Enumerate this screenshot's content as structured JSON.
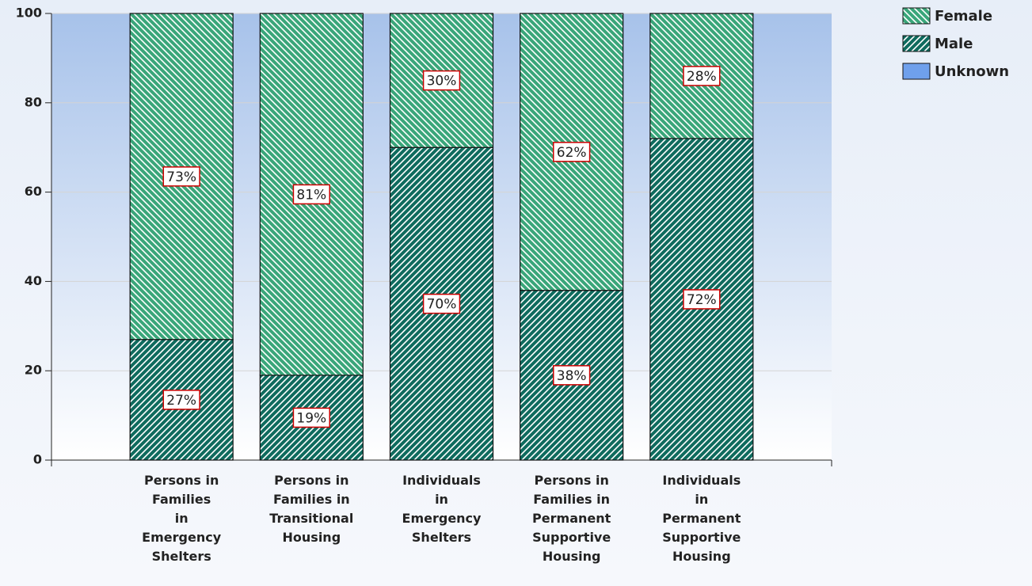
{
  "chart_data": {
    "type": "stacked_bar",
    "categories": [
      "Persons in\nFamilies\nin\nEmergency\nShelters",
      "Persons in\nFamilies in\nTransitional\nHousing",
      "Individuals\nin\nEmergency\nShelters",
      "Persons in\nFamilies in\nPermanent\nSupportive\nHousing",
      "Individuals\nin\nPermanent\nSupportive\nHousing"
    ],
    "series": [
      {
        "name": "Female",
        "color": "#3aa67a",
        "values": [
          73,
          81,
          30,
          62,
          28
        ],
        "value_labels": [
          "73%",
          "81%",
          "30%",
          "62%",
          "28%"
        ]
      },
      {
        "name": "Male",
        "color": "#0f6b5e",
        "values": [
          27,
          19,
          70,
          38,
          72
        ],
        "value_labels": [
          "27%",
          "19%",
          "70%",
          "38%",
          "72%"
        ]
      },
      {
        "name": "Unknown",
        "color": "#6fa0ec",
        "values": [
          0,
          0,
          0,
          0,
          0
        ]
      }
    ],
    "stack_order": [
      "Male",
      "Female",
      "Unknown"
    ],
    "ylim": [
      0,
      100
    ],
    "yticks": [
      0,
      20,
      40,
      60,
      80,
      100
    ],
    "grid": true,
    "legend": "top-right"
  }
}
